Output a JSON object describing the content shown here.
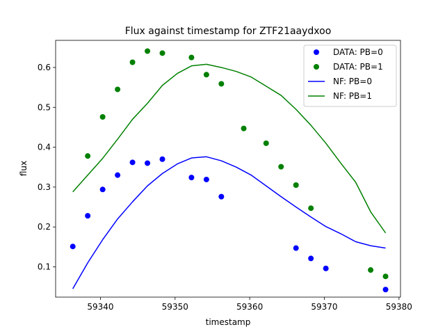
{
  "chart_data": {
    "type": "scatter",
    "title": "Flux against timestamp for ZTF21aaydxoo",
    "xlabel": "timestamp",
    "ylabel": "flux",
    "xlim": [
      59334.0,
      59380.2
    ],
    "ylim": [
      0.024,
      0.668
    ],
    "xticks": [
      59340,
      59350,
      59360,
      59370,
      59380
    ],
    "yticks": [
      0.1,
      0.2,
      0.3,
      0.4,
      0.5,
      0.6
    ],
    "grid": false,
    "legend_position": "top-right",
    "series": [
      {
        "name": "DATA: PB=0",
        "kind": "points",
        "color": "#0000ff",
        "x": [
          59336.3,
          59338.3,
          59340.3,
          59342.3,
          59344.3,
          59346.3,
          59348.3,
          59352.2,
          59354.2,
          59356.2,
          59366.2,
          59368.2,
          59370.2,
          59378.2
        ],
        "y": [
          0.151,
          0.228,
          0.294,
          0.33,
          0.362,
          0.36,
          0.37,
          0.324,
          0.319,
          0.276,
          0.147,
          0.121,
          0.096,
          0.043
        ]
      },
      {
        "name": "DATA: PB=1",
        "kind": "points",
        "color": "#008000",
        "x": [
          59338.3,
          59340.3,
          59342.3,
          59344.3,
          59346.3,
          59348.3,
          59352.2,
          59354.2,
          59356.2,
          59359.2,
          59362.2,
          59364.2,
          59366.2,
          59368.2,
          59376.2,
          59378.2
        ],
        "y": [
          0.378,
          0.476,
          0.545,
          0.613,
          0.641,
          0.636,
          0.625,
          0.582,
          0.559,
          0.447,
          0.41,
          0.351,
          0.305,
          0.247,
          0.092,
          0.076
        ]
      },
      {
        "name": "NF: PB=0",
        "kind": "line",
        "color": "#0000ff",
        "x": [
          59336.3,
          59338.3,
          59340.3,
          59342.3,
          59344.3,
          59346.3,
          59348.3,
          59350.3,
          59352.2,
          59354.2,
          59356.2,
          59358.2,
          59360.2,
          59362.2,
          59364.2,
          59366.2,
          59368.2,
          59370.2,
          59372.2,
          59374.2,
          59376.2,
          59378.2
        ],
        "y": [
          0.045,
          0.11,
          0.168,
          0.22,
          0.263,
          0.303,
          0.334,
          0.358,
          0.373,
          0.376,
          0.366,
          0.35,
          0.33,
          0.303,
          0.276,
          0.25,
          0.225,
          0.201,
          0.183,
          0.163,
          0.153,
          0.147
        ]
      },
      {
        "name": "NF: PB=1",
        "kind": "line",
        "color": "#008000",
        "x": [
          59336.3,
          59338.3,
          59340.3,
          59342.3,
          59344.3,
          59346.3,
          59348.3,
          59350.3,
          59352.2,
          59354.2,
          59356.2,
          59358.2,
          59360.2,
          59362.2,
          59364.2,
          59366.2,
          59368.2,
          59370.2,
          59372.2,
          59374.2,
          59376.2,
          59378.2
        ],
        "y": [
          0.288,
          0.33,
          0.372,
          0.42,
          0.47,
          0.51,
          0.555,
          0.585,
          0.604,
          0.608,
          0.6,
          0.59,
          0.576,
          0.553,
          0.53,
          0.495,
          0.455,
          0.41,
          0.36,
          0.312,
          0.238,
          0.185
        ]
      }
    ]
  }
}
